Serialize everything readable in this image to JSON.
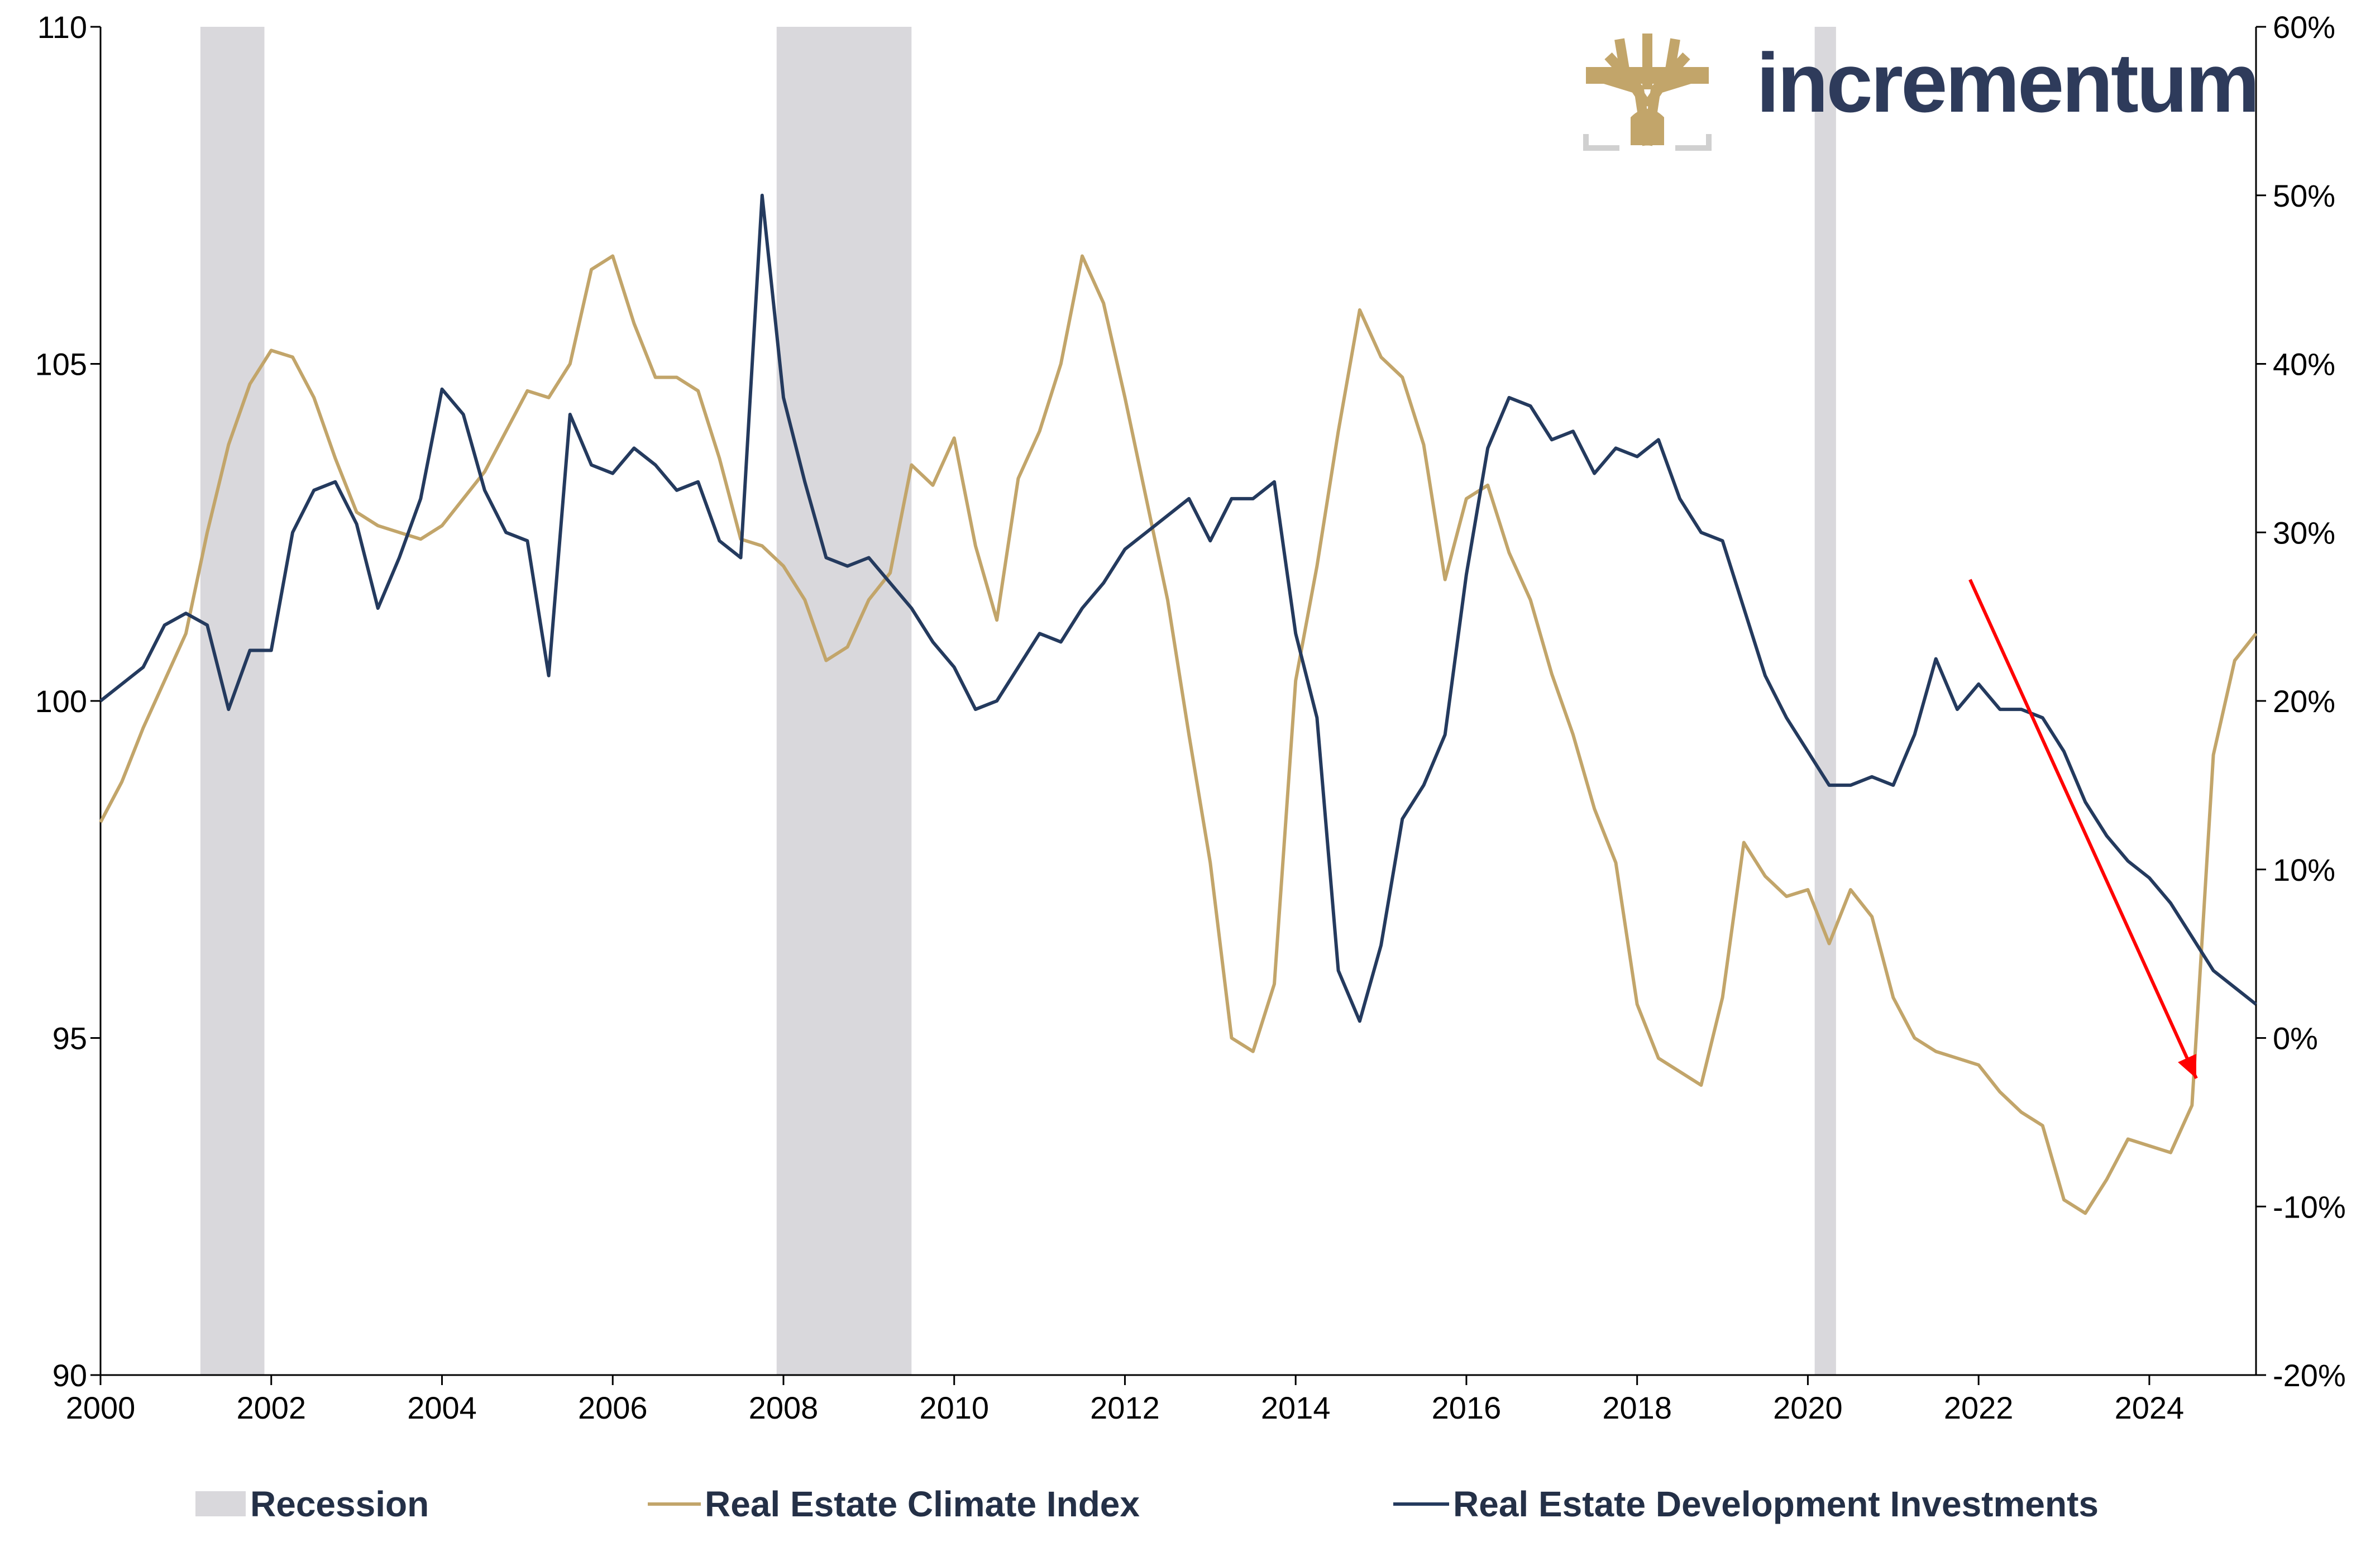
{
  "logo": {
    "name": "incrementum-tree-logo",
    "text": "incrementum",
    "color": "#c2a56a",
    "text_color": "#2e3b5b"
  },
  "chart_data": {
    "type": "line",
    "title": "",
    "xlim": [
      2000,
      2025.25
    ],
    "x_ticks": [
      "2000",
      "2002",
      "2004",
      "2006",
      "2008",
      "2010",
      "2012",
      "2014",
      "2016",
      "2018",
      "2020",
      "2022",
      "2024"
    ],
    "y_left": {
      "range": [
        90,
        110
      ],
      "ticks": [
        "90",
        "95",
        "100",
        "105",
        "110"
      ]
    },
    "y_right": {
      "range": [
        -20,
        60
      ],
      "ticks": [
        "-20%",
        "-10%",
        "0%",
        "10%",
        "20%",
        "30%",
        "40%",
        "50%",
        "60%"
      ]
    },
    "recessions": [
      [
        2001.17,
        2001.92
      ],
      [
        2007.92,
        2009.5
      ],
      [
        2020.08,
        2020.33
      ]
    ],
    "legend": {
      "recession": "Recession",
      "climate": "Real Estate Climate Index",
      "investment": "Real Estate Development Investments",
      "placement": "bottom"
    },
    "colors": {
      "recession": "#d9d8dc",
      "climate": "#c2a56a",
      "investment": "#243a5e",
      "arrow": "#ff0000"
    },
    "annotation_arrow": {
      "from": [
        2021.9,
        101.8
      ],
      "to": [
        2024.55,
        94.4
      ]
    },
    "series": [
      {
        "name": "Real Estate Climate Index",
        "axis": "left",
        "points": [
          [
            2000.0,
            98.2
          ],
          [
            2000.25,
            98.8
          ],
          [
            2000.5,
            99.6
          ],
          [
            2000.75,
            100.3
          ],
          [
            2001.0,
            101.0
          ],
          [
            2001.25,
            102.5
          ],
          [
            2001.5,
            103.8
          ],
          [
            2001.75,
            104.7
          ],
          [
            2002.0,
            105.2
          ],
          [
            2002.25,
            105.1
          ],
          [
            2002.5,
            104.5
          ],
          [
            2002.75,
            103.6
          ],
          [
            2003.0,
            102.8
          ],
          [
            2003.25,
            102.6
          ],
          [
            2003.5,
            102.5
          ],
          [
            2003.75,
            102.4
          ],
          [
            2004.0,
            102.6
          ],
          [
            2004.25,
            103.0
          ],
          [
            2004.5,
            103.4
          ],
          [
            2004.75,
            104.0
          ],
          [
            2005.0,
            104.6
          ],
          [
            2005.25,
            104.5
          ],
          [
            2005.5,
            105.0
          ],
          [
            2005.75,
            106.4
          ],
          [
            2006.0,
            106.6
          ],
          [
            2006.25,
            105.6
          ],
          [
            2006.5,
            104.8
          ],
          [
            2006.75,
            104.8
          ],
          [
            2007.0,
            104.6
          ],
          [
            2007.25,
            103.6
          ],
          [
            2007.5,
            102.4
          ],
          [
            2007.75,
            102.3
          ],
          [
            2008.0,
            102.0
          ],
          [
            2008.25,
            101.5
          ],
          [
            2008.5,
            100.6
          ],
          [
            2008.75,
            100.8
          ],
          [
            2009.0,
            101.5
          ],
          [
            2009.25,
            101.9
          ],
          [
            2009.5,
            103.5
          ],
          [
            2009.75,
            103.2
          ],
          [
            2010.0,
            103.9
          ],
          [
            2010.25,
            102.3
          ],
          [
            2010.5,
            101.2
          ],
          [
            2010.75,
            103.3
          ],
          [
            2011.0,
            104.0
          ],
          [
            2011.25,
            105.0
          ],
          [
            2011.5,
            106.6
          ],
          [
            2011.75,
            105.9
          ],
          [
            2012.0,
            104.5
          ],
          [
            2012.25,
            103.0
          ],
          [
            2012.5,
            101.5
          ],
          [
            2012.75,
            99.5
          ],
          [
            2013.0,
            97.6
          ],
          [
            2013.25,
            95.0
          ],
          [
            2013.5,
            94.8
          ],
          [
            2013.75,
            95.8
          ],
          [
            2014.0,
            100.3
          ],
          [
            2014.25,
            102.0
          ],
          [
            2014.5,
            104.0
          ],
          [
            2014.75,
            105.8
          ],
          [
            2015.0,
            105.1
          ],
          [
            2015.25,
            104.8
          ],
          [
            2015.5,
            103.8
          ],
          [
            2015.75,
            101.8
          ],
          [
            2016.0,
            103.0
          ],
          [
            2016.25,
            103.2
          ],
          [
            2016.5,
            102.2
          ],
          [
            2016.75,
            101.5
          ],
          [
            2017.0,
            100.4
          ],
          [
            2017.25,
            99.5
          ],
          [
            2017.5,
            98.4
          ],
          [
            2017.75,
            97.6
          ],
          [
            2018.0,
            95.5
          ],
          [
            2018.25,
            94.7
          ],
          [
            2018.5,
            94.5
          ],
          [
            2018.75,
            94.3
          ],
          [
            2019.0,
            95.6
          ],
          [
            2019.25,
            97.9
          ],
          [
            2019.5,
            97.4
          ],
          [
            2019.75,
            97.1
          ],
          [
            2020.0,
            97.2
          ],
          [
            2020.25,
            96.4
          ],
          [
            2020.5,
            97.2
          ],
          [
            2020.75,
            96.8
          ],
          [
            2021.0,
            95.6
          ],
          [
            2021.25,
            95.0
          ],
          [
            2021.5,
            94.8
          ],
          [
            2021.75,
            94.7
          ],
          [
            2022.0,
            94.6
          ],
          [
            2022.25,
            94.2
          ],
          [
            2022.5,
            93.9
          ],
          [
            2022.75,
            93.7
          ],
          [
            2023.0,
            92.6
          ],
          [
            2023.25,
            92.4
          ],
          [
            2023.5,
            92.9
          ],
          [
            2023.75,
            93.5
          ],
          [
            2024.0,
            93.4
          ],
          [
            2024.25,
            93.3
          ],
          [
            2024.5,
            94.0
          ],
          [
            2024.75,
            99.2
          ],
          [
            2025.0,
            100.6
          ],
          [
            2025.25,
            101.0
          ]
        ]
      },
      {
        "name": "Real Estate Development Investments",
        "axis": "right",
        "points": [
          [
            2000.0,
            20.0
          ],
          [
            2000.25,
            21.0
          ],
          [
            2000.5,
            22.0
          ],
          [
            2000.75,
            24.5
          ],
          [
            2001.0,
            25.2
          ],
          [
            2001.25,
            24.5
          ],
          [
            2001.5,
            19.5
          ],
          [
            2001.75,
            23.0
          ],
          [
            2002.0,
            23.0
          ],
          [
            2002.25,
            30.0
          ],
          [
            2002.5,
            32.5
          ],
          [
            2002.75,
            33.0
          ],
          [
            2003.0,
            30.5
          ],
          [
            2003.25,
            25.5
          ],
          [
            2003.5,
            28.5
          ],
          [
            2003.75,
            32.0
          ],
          [
            2004.0,
            38.5
          ],
          [
            2004.25,
            37.0
          ],
          [
            2004.5,
            32.5
          ],
          [
            2004.75,
            30.0
          ],
          [
            2005.0,
            29.5
          ],
          [
            2005.25,
            21.5
          ],
          [
            2005.5,
            37.0
          ],
          [
            2005.75,
            34.0
          ],
          [
            2006.0,
            33.5
          ],
          [
            2006.25,
            35.0
          ],
          [
            2006.5,
            34.0
          ],
          [
            2006.75,
            32.5
          ],
          [
            2007.0,
            33.0
          ],
          [
            2007.25,
            29.5
          ],
          [
            2007.5,
            28.5
          ],
          [
            2007.75,
            50.0
          ],
          [
            2008.0,
            38.0
          ],
          [
            2008.25,
            33.0
          ],
          [
            2008.5,
            28.5
          ],
          [
            2008.75,
            28.0
          ],
          [
            2009.0,
            28.5
          ],
          [
            2009.25,
            27.0
          ],
          [
            2009.5,
            25.5
          ],
          [
            2009.75,
            23.5
          ],
          [
            2010.0,
            22.0
          ],
          [
            2010.25,
            19.5
          ],
          [
            2010.5,
            20.0
          ],
          [
            2010.75,
            22.0
          ],
          [
            2011.0,
            24.0
          ],
          [
            2011.25,
            23.5
          ],
          [
            2011.5,
            25.5
          ],
          [
            2011.75,
            27.0
          ],
          [
            2012.0,
            29.0
          ],
          [
            2012.25,
            30.0
          ],
          [
            2012.5,
            31.0
          ],
          [
            2012.75,
            32.0
          ],
          [
            2013.0,
            29.5
          ],
          [
            2013.25,
            32.0
          ],
          [
            2013.5,
            32.0
          ],
          [
            2013.75,
            33.0
          ],
          [
            2014.0,
            24.0
          ],
          [
            2014.25,
            19.0
          ],
          [
            2014.5,
            4.0
          ],
          [
            2014.75,
            1.0
          ],
          [
            2015.0,
            5.5
          ],
          [
            2015.25,
            13.0
          ],
          [
            2015.5,
            15.0
          ],
          [
            2015.75,
            18.0
          ],
          [
            2016.0,
            27.5
          ],
          [
            2016.25,
            35.0
          ],
          [
            2016.5,
            38.0
          ],
          [
            2016.75,
            37.5
          ],
          [
            2017.0,
            35.5
          ],
          [
            2017.25,
            36.0
          ],
          [
            2017.5,
            33.5
          ],
          [
            2017.75,
            35.0
          ],
          [
            2018.0,
            34.5
          ],
          [
            2018.25,
            35.5
          ],
          [
            2018.5,
            32.0
          ],
          [
            2018.75,
            30.0
          ],
          [
            2019.0,
            29.5
          ],
          [
            2019.25,
            25.5
          ],
          [
            2019.5,
            21.5
          ],
          [
            2019.75,
            19.0
          ],
          [
            2020.0,
            17.0
          ],
          [
            2020.25,
            15.0
          ],
          [
            2020.5,
            15.0
          ],
          [
            2020.75,
            15.5
          ],
          [
            2021.0,
            15.0
          ],
          [
            2021.25,
            18.0
          ],
          [
            2021.5,
            22.5
          ],
          [
            2021.75,
            19.5
          ],
          [
            2022.0,
            21.0
          ],
          [
            2022.25,
            19.5
          ],
          [
            2022.5,
            19.5
          ],
          [
            2022.75,
            19.0
          ],
          [
            2023.0,
            17.0
          ],
          [
            2023.25,
            14.0
          ],
          [
            2023.5,
            12.0
          ],
          [
            2023.75,
            10.5
          ],
          [
            2024.0,
            9.5
          ],
          [
            2024.25,
            8.0
          ],
          [
            2024.5,
            6.0
          ],
          [
            2024.75,
            4.0
          ],
          [
            2025.0,
            3.0
          ],
          [
            2025.25,
            2.0
          ]
        ]
      }
    ]
  }
}
